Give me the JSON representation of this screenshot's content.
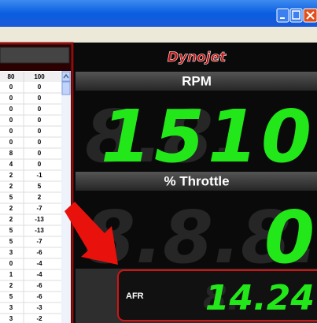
{
  "table": {
    "header": [
      "80",
      "100"
    ],
    "rows": [
      [
        "0",
        "0"
      ],
      [
        "0",
        "0"
      ],
      [
        "0",
        "0"
      ],
      [
        "0",
        "0"
      ],
      [
        "0",
        "0"
      ],
      [
        "0",
        "0"
      ],
      [
        "8",
        "0"
      ],
      [
        "4",
        "0"
      ],
      [
        "2",
        "-1"
      ],
      [
        "2",
        "5"
      ],
      [
        "5",
        "2"
      ],
      [
        "2",
        "-7"
      ],
      [
        "2",
        "-13"
      ],
      [
        "5",
        "-13"
      ],
      [
        "5",
        "-7"
      ],
      [
        "3",
        "-6"
      ],
      [
        "0",
        "-4"
      ],
      [
        "1",
        "-4"
      ],
      [
        "2",
        "-6"
      ],
      [
        "5",
        "-6"
      ],
      [
        "3",
        "-3"
      ],
      [
        "3",
        "-2"
      ]
    ]
  },
  "gauges": {
    "logo": "Dynojet",
    "rpm": {
      "label": "RPM",
      "ghost": "8.8.",
      "value": "1510"
    },
    "throttle": {
      "label": "% Throttle",
      "ghost": "8.8.8.8.",
      "value": "0"
    },
    "afr": {
      "label": "AFR",
      "ghost": "8.",
      "value": "14.24"
    }
  }
}
